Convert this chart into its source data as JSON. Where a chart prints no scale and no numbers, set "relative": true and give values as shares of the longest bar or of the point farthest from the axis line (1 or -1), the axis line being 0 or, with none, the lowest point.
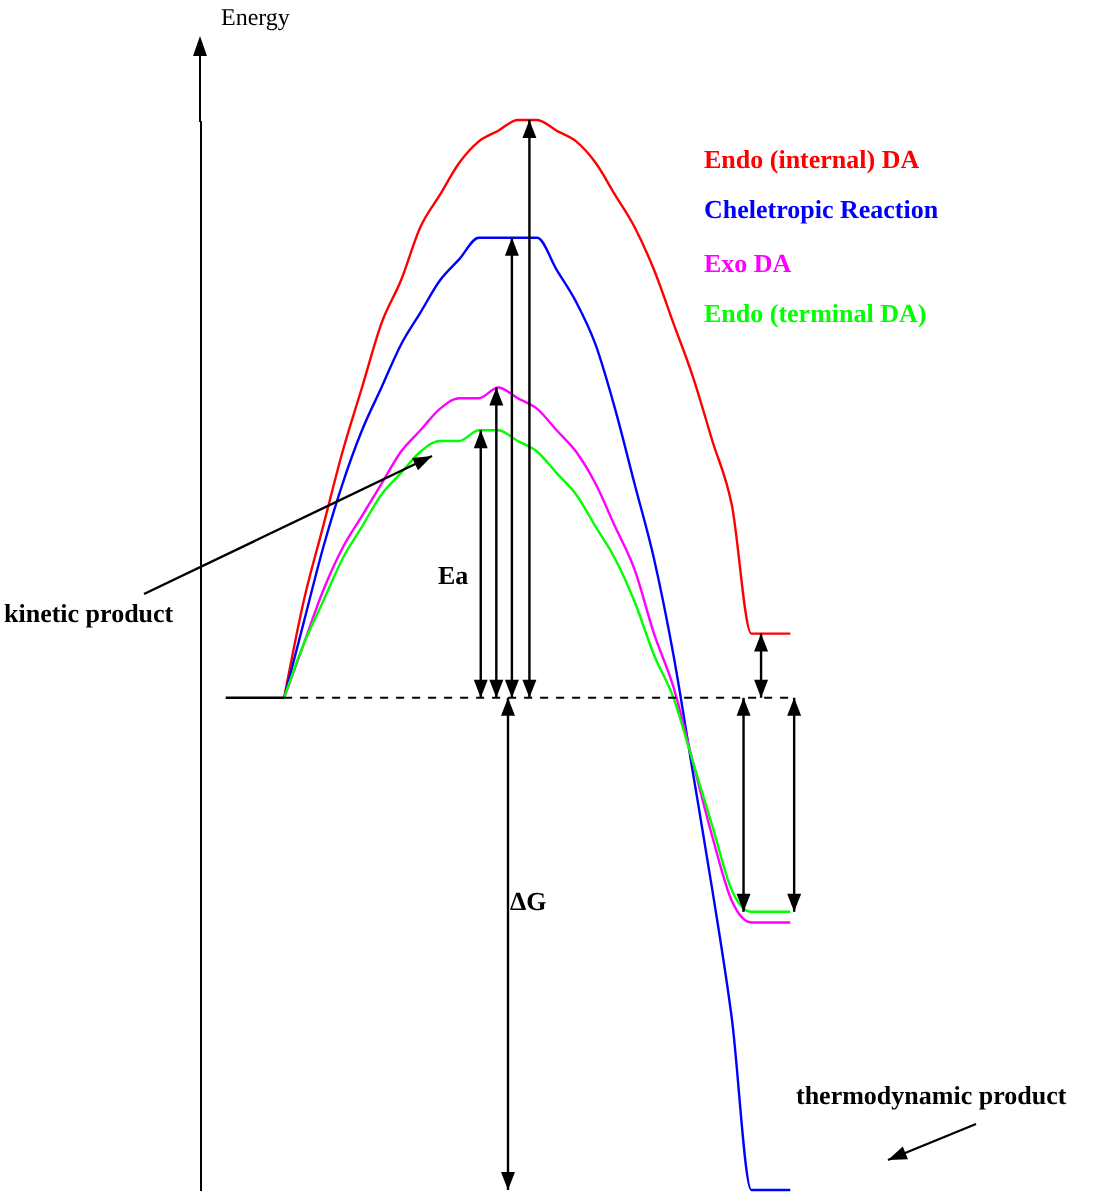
{
  "chart_data": {
    "type": "line",
    "relative": true,
    "ylabel": "Energy",
    "categories": [
      null,
      null,
      null,
      null,
      null,
      null,
      null,
      null,
      null,
      null,
      null,
      null,
      null,
      null,
      null,
      null,
      null,
      null,
      null,
      null,
      null,
      null,
      null,
      null,
      null,
      null,
      null,
      null,
      null,
      null
    ],
    "series": [
      {
        "name": "Endo (internal) DA",
        "color": "#ff0000",
        "values": [
          null,
          null,
          null,
          0.46,
          0.55,
          0.62,
          0.69,
          0.75,
          0.81,
          0.85,
          0.9,
          0.93,
          0.96,
          0.98,
          0.99,
          1.0,
          1.0,
          0.99,
          0.98,
          0.96,
          0.93,
          0.9,
          0.86,
          0.81,
          0.76,
          0.7,
          0.64,
          0.52,
          0.52,
          0.52
        ]
      },
      {
        "name": "Cheletropic Reaction",
        "color": "#0000ff",
        "values": [
          null,
          null,
          null,
          0.46,
          0.53,
          0.6,
          0.66,
          0.71,
          0.75,
          0.79,
          0.82,
          0.85,
          0.87,
          0.89,
          0.89,
          0.89,
          0.89,
          0.86,
          0.83,
          0.79,
          0.73,
          0.66,
          0.59,
          0.5,
          0.39,
          0.28,
          0.16,
          0,
          0,
          0
        ]
      },
      {
        "name": "Exo DA",
        "color": "#ff00ff",
        "values": [
          null,
          null,
          null,
          0.46,
          0.51,
          0.56,
          0.6,
          0.63,
          0.66,
          0.69,
          0.71,
          0.73,
          0.74,
          0.74,
          0.75,
          0.74,
          0.73,
          0.71,
          0.69,
          0.66,
          0.62,
          0.58,
          0.52,
          0.47,
          0.4,
          0.33,
          0.27,
          0.25,
          0.25,
          0.25
        ]
      },
      {
        "name": "Endo (terminal DA)",
        "color": "#00ff00",
        "values": [
          null,
          null,
          null,
          0.46,
          0.51,
          0.55,
          0.59,
          0.62,
          0.65,
          0.67,
          0.69,
          0.7,
          0.7,
          0.71,
          0.71,
          0.7,
          0.69,
          0.67,
          0.65,
          0.62,
          0.59,
          0.55,
          0.5,
          0.46,
          0.4,
          0.34,
          0.28,
          0.26,
          0.26,
          0.26
        ]
      },
      {
        "color": "#000000",
        "values": [
          0.46,
          0.46,
          0.46,
          0.46,
          null,
          null,
          null,
          null,
          null,
          null,
          null,
          null,
          null,
          null,
          null,
          null,
          null,
          null,
          null,
          null,
          null,
          null,
          null,
          null,
          null,
          null,
          null,
          null,
          null,
          null
        ]
      }
    ],
    "ref_lines": [
      {
        "axis": "y",
        "value": 0.46,
        "color": "#000000",
        "line_style": "dashed"
      }
    ],
    "annotations": [
      "Ea",
      "ΔG",
      "kinetic product",
      "thermodynamic product"
    ],
    "legend": "top right"
  }
}
